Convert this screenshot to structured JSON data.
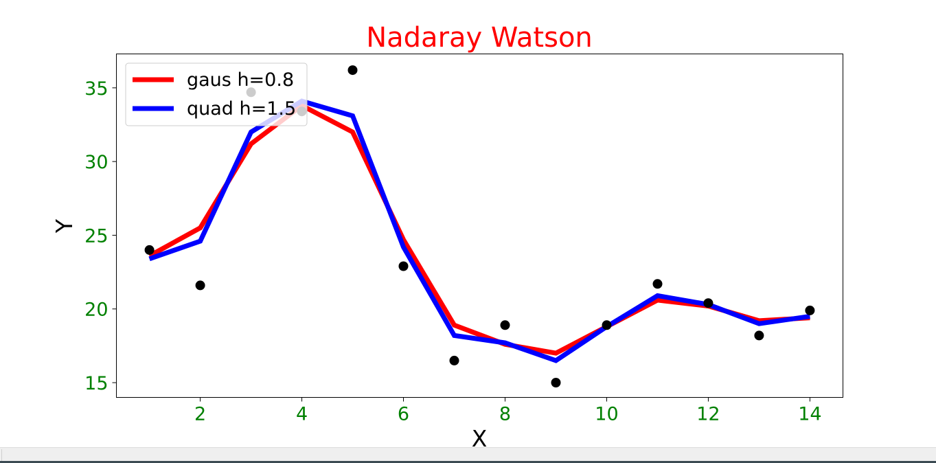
{
  "chart_data": {
    "type": "line",
    "title": "Nadaray Watson",
    "xlabel": "X",
    "ylabel": "Y",
    "xlim": [
      0.35,
      14.65
    ],
    "ylim": [
      14.0,
      37.3
    ],
    "xticks": [
      2,
      4,
      6,
      8,
      10,
      12,
      14
    ],
    "yticks": [
      15,
      20,
      25,
      30,
      35
    ],
    "grid": false,
    "legend_position": "upper-left",
    "colors": {
      "title": "#ff0000",
      "ticks": "#008000",
      "axis_label": "#000000",
      "points": "#000000"
    },
    "scatter": {
      "x": [
        1,
        2,
        3,
        4,
        5,
        6,
        7,
        8,
        9,
        10,
        11,
        12,
        13,
        14
      ],
      "y": [
        24.0,
        21.6,
        34.7,
        33.4,
        36.2,
        22.9,
        16.5,
        18.9,
        15.0,
        18.9,
        21.7,
        20.4,
        18.2,
        19.9
      ]
    },
    "series": [
      {
        "name": "gaus h=0.8",
        "color": "#ff0000",
        "x": [
          1,
          2,
          3,
          4,
          5,
          6,
          7,
          8,
          9,
          10,
          11,
          12,
          13,
          14
        ],
        "y": [
          23.6,
          25.5,
          31.2,
          33.8,
          32.0,
          24.7,
          18.9,
          17.6,
          17.0,
          18.8,
          20.6,
          20.2,
          19.2,
          19.4
        ]
      },
      {
        "name": "quad h=1.5",
        "color": "#0000ff",
        "x": [
          1,
          2,
          3,
          4,
          5,
          6,
          7,
          8,
          9,
          10,
          11,
          12,
          13,
          14
        ],
        "y": [
          23.4,
          24.6,
          32.0,
          34.1,
          33.1,
          24.2,
          18.2,
          17.7,
          16.5,
          18.8,
          20.9,
          20.3,
          19.0,
          19.5
        ]
      }
    ]
  }
}
